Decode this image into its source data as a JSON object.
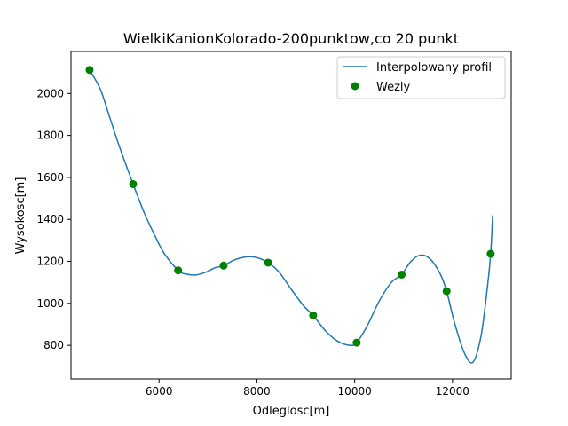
{
  "chart_data": {
    "type": "line",
    "title": "WielkiKanionKolorado-200punktow,co 20 punkt",
    "xlabel": "Odleglosc[m]",
    "ylabel": "Wysokosc[m]",
    "xlim": [
      4200,
      13200
    ],
    "ylim": [
      640,
      2200
    ],
    "xticks": [
      6000,
      8000,
      10000,
      12000
    ],
    "yticks": [
      800,
      1000,
      1200,
      1400,
      1600,
      1800,
      2000
    ],
    "xtick_labels": [
      "6000",
      "8000",
      "10000",
      "12000"
    ],
    "ytick_labels": [
      "800",
      "1000",
      "1200",
      "1400",
      "1600",
      "1800",
      "2000"
    ],
    "grid": false,
    "legend_position": "top-right",
    "series": [
      {
        "name": "Interpolowany profil",
        "kind": "line",
        "color": "#1f77b4",
        "x": [
          4580,
          4800,
          5000,
          5200,
          5470,
          5700,
          5900,
          6100,
          6390,
          6550,
          6750,
          6950,
          7150,
          7320,
          7550,
          7800,
          8000,
          8230,
          8450,
          8700,
          8950,
          9150,
          9400,
          9650,
          9900,
          10040,
          10250,
          10500,
          10750,
          10960,
          11150,
          11350,
          11550,
          11750,
          11880,
          12050,
          12250,
          12420,
          12580,
          12700,
          12780,
          12820
        ],
        "y": [
          2112,
          2020,
          1880,
          1740,
          1568,
          1430,
          1330,
          1240,
          1157,
          1140,
          1135,
          1148,
          1170,
          1180,
          1208,
          1222,
          1218,
          1194,
          1150,
          1068,
          990,
          943,
          870,
          820,
          800,
          813,
          890,
          1010,
          1100,
          1137,
          1200,
          1230,
          1210,
          1140,
          1058,
          900,
          760,
          720,
          840,
          1050,
          1236,
          1420
        ]
      },
      {
        "name": "Wezly",
        "kind": "markers",
        "color": "#008000",
        "x": [
          4580,
          5470,
          6390,
          7320,
          8230,
          9150,
          10040,
          10960,
          11880,
          12780
        ],
        "y": [
          2112,
          1568,
          1157,
          1180,
          1194,
          943,
          813,
          1137,
          1058,
          1236
        ]
      }
    ]
  }
}
